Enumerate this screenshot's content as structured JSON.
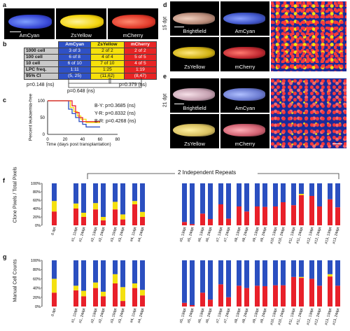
{
  "panels": {
    "a": {
      "label": "a",
      "images": [
        {
          "caption": "AmCyan",
          "color": "#3a4bd8"
        },
        {
          "caption": "ZsYellow",
          "color": "#f3d40d"
        },
        {
          "caption": "mCherry",
          "color": "#e23b2b"
        }
      ]
    },
    "b": {
      "label": "b",
      "columns": [
        "",
        "AmCyan",
        "ZsYellow",
        "mCherry"
      ],
      "rows": [
        {
          "head": "1000 cell",
          "cells": [
            "3 of 3",
            "2 of 2",
            "2 of 2"
          ]
        },
        {
          "head": "100 cell",
          "cells": [
            "6 of 8",
            "4 of 4",
            "5 of 5"
          ]
        },
        {
          "head": "10 cell",
          "cells": [
            "6 of 10",
            "7 of 10",
            "4 of 5"
          ]
        },
        {
          "head": "LPC freq.",
          "cells": [
            "1:11",
            "1:25",
            "1:19"
          ]
        },
        {
          "head": "95% CI",
          "cells": [
            "(5, 25)",
            "(11,62)",
            "(8,47)"
          ]
        }
      ],
      "pvalues": {
        "left": "p=0.148 (ns)",
        "middle": "p=0.648 (ns)",
        "right": "p=0.379 (ns)"
      }
    },
    "c": {
      "label": "c",
      "ylabel": "Percent leukaemia-free",
      "xlabel": "Time (days post transplantation)",
      "yticks": [
        "0",
        "50",
        "100"
      ],
      "xticks": [
        "0",
        "20",
        "40",
        "60",
        "80"
      ],
      "stats": [
        "B-Y: p=0.3685 (ns)",
        "Y-R: p=0.8332 (ns)",
        "B-R: p=0.4268 (ns)"
      ]
    },
    "d": {
      "label": "d",
      "timepoint": "15 dpt",
      "captions": [
        "Brightfield",
        "AmCyan",
        "ZsYellow",
        "mCherry"
      ]
    },
    "e": {
      "label": "e",
      "timepoint": "21 dpt",
      "captions": [
        "Brightfield",
        "AmCyan",
        "ZsYellow",
        "mCherry"
      ]
    },
    "f": {
      "label": "f",
      "ylabel": "Clone Pixels / Total Pixels",
      "header": "2 Independent Repeats"
    },
    "g": {
      "label": "g",
      "ylabel": "Manual Cell Counts"
    }
  },
  "colors": {
    "blue": "#2b4fc0",
    "yellow": "#f4e010",
    "red": "#e8202a"
  },
  "chart_data": [
    {
      "type": "line",
      "title": "",
      "xlabel": "Time (days post transplantation)",
      "ylabel": "Percent leukaemia-free",
      "xlim": [
        0,
        80
      ],
      "ylim": [
        0,
        100
      ],
      "series": [
        {
          "color": "#2b4fc0",
          "x": [
            0,
            20,
            24,
            28,
            32,
            36,
            40,
            44,
            60
          ],
          "y": [
            100,
            100,
            75,
            62,
            50,
            38,
            30,
            22,
            22
          ]
        },
        {
          "color": "#f4e010",
          "x": [
            0,
            20,
            26,
            30,
            34,
            38,
            44,
            60
          ],
          "y": [
            100,
            100,
            80,
            68,
            55,
            45,
            35,
            35
          ]
        },
        {
          "color": "#e8202a",
          "x": [
            0,
            22,
            28,
            32,
            36,
            40,
            60
          ],
          "y": [
            100,
            100,
            85,
            65,
            50,
            38,
            38
          ]
        }
      ]
    },
    {
      "type": "bar",
      "title": "Clone Pixels / Total Pixels",
      "yticks": [
        "0%",
        "20%",
        "40%",
        "60%",
        "80%",
        "100%"
      ],
      "categories": [
        "0 dpt",
        "#1, 11dpt",
        "#1, 24dpt",
        "#2, 13dpt",
        "#2, 24dpt",
        "#3, 15dpt",
        "#3, 24dpt",
        "#4, 11dpt",
        "#4, 24dpt",
        "#5, 13dpt",
        "#5, 24dpt",
        "#6, 13dpt",
        "#6, 24dpt",
        "#7, 13dpt",
        "#7, 24dpt",
        "#8, 13dpt",
        "#8, 24dpt",
        "#9, 13dpt",
        "#9, 24dpt",
        "#10, 13dpt",
        "#10, 24dpt",
        "#11, 13dpt",
        "#11, 24dpt",
        "#12, 13dpt",
        "#12, 24dpt",
        "#13, 13dpt",
        "#13, 24dpt"
      ],
      "series": [
        {
          "name": "red",
          "values": [
            33,
            40,
            20,
            38,
            12,
            38,
            14,
            50,
            20,
            8,
            3,
            28,
            15,
            50,
            16,
            45,
            33,
            45,
            44,
            45,
            55,
            48,
            72,
            70,
            45,
            62,
            43
          ]
        },
        {
          "name": "yellow",
          "values": [
            25,
            12,
            10,
            15,
            8,
            18,
            12,
            8,
            12,
            0,
            0,
            0,
            0,
            0,
            0,
            0,
            0,
            0,
            0,
            0,
            0,
            0,
            3,
            0,
            0,
            0,
            0
          ]
        },
        {
          "name": "blue",
          "values": [
            42,
            48,
            70,
            47,
            80,
            44,
            74,
            42,
            68,
            92,
            97,
            72,
            85,
            50,
            84,
            55,
            67,
            55,
            56,
            55,
            45,
            52,
            25,
            30,
            55,
            38,
            57
          ]
        }
      ]
    },
    {
      "type": "bar",
      "title": "Manual Cell Counts",
      "yticks": [
        "0%",
        "20%",
        "40%",
        "60%",
        "80%",
        "100%"
      ],
      "categories": [
        "0 dpt",
        "#1, 11dpt",
        "#1, 24dpt",
        "#2, 13dpt",
        "#2, 24dpt",
        "#3, 15dpt",
        "#3, 24dpt",
        "#4, 11dpt",
        "#4, 24dpt",
        "#5, 13dpt",
        "#5, 24dpt",
        "#6, 13dpt",
        "#6, 24dpt",
        "#7, 13dpt",
        "#7, 24dpt",
        "#8, 13dpt",
        "#8, 24dpt",
        "#9, 13dpt",
        "#9, 24dpt",
        "#10, 13dpt",
        "#10, 24dpt",
        "#11, 13dpt",
        "#11, 24dpt",
        "#12, 13dpt",
        "#12, 24dpt",
        "#13, 13dpt",
        "#13, 24dpt"
      ],
      "series": [
        {
          "name": "red",
          "values": [
            30,
            35,
            22,
            40,
            22,
            50,
            12,
            40,
            24,
            8,
            3,
            30,
            15,
            48,
            20,
            45,
            40,
            45,
            44,
            46,
            46,
            64,
            62,
            60,
            45,
            65,
            45
          ]
        },
        {
          "name": "yellow",
          "values": [
            30,
            10,
            12,
            12,
            10,
            20,
            30,
            10,
            12,
            0,
            0,
            0,
            0,
            0,
            0,
            0,
            0,
            0,
            0,
            0,
            0,
            0,
            2,
            0,
            0,
            5,
            0
          ]
        },
        {
          "name": "blue",
          "values": [
            40,
            55,
            66,
            48,
            68,
            30,
            58,
            50,
            64,
            92,
            97,
            70,
            85,
            52,
            80,
            55,
            60,
            55,
            56,
            54,
            54,
            36,
            36,
            40,
            55,
            30,
            55
          ]
        }
      ]
    }
  ]
}
